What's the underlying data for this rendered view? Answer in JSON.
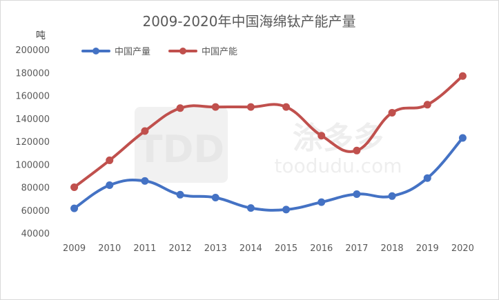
{
  "chart_data": {
    "type": "line",
    "title": "2009-2020年中国海绵钛产能产量",
    "ylabel": "吨",
    "xlabel": "",
    "categories": [
      "2009",
      "2010",
      "2011",
      "2012",
      "2013",
      "2014",
      "2015",
      "2016",
      "2017",
      "2018",
      "2019",
      "2020"
    ],
    "ylim": [
      40000,
      200000
    ],
    "yticks": [
      "200000",
      "180000",
      "160000",
      "140000",
      "120000",
      "100000",
      "80000",
      "60000",
      "40000"
    ],
    "grid": false,
    "legend_position": "top-left",
    "series": [
      {
        "name": "中国产量",
        "color": "#4472C4",
        "values": [
          61600,
          81800,
          85500,
          73500,
          71000,
          61900,
          60500,
          67000,
          74000,
          72300,
          88000,
          123000
        ]
      },
      {
        "name": "中国产能",
        "color": "#C0504D",
        "values": [
          80000,
          103500,
          129000,
          149000,
          150000,
          150000,
          150000,
          125000,
          112000,
          145000,
          152000,
          177000
        ]
      }
    ]
  },
  "watermark": {
    "logo_text": "TDD",
    "brand_text": "涂多多",
    "site_text": "toodudu.com"
  }
}
